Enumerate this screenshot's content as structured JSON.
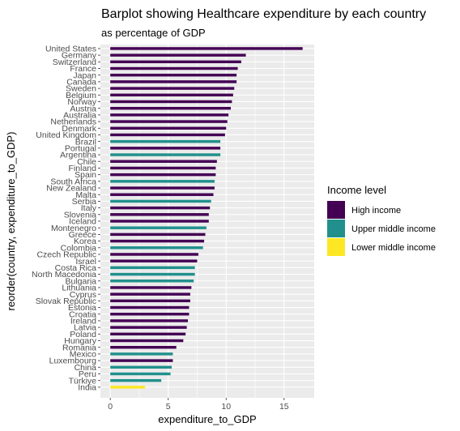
{
  "chart_data": {
    "type": "bar",
    "orientation": "horizontal",
    "title": "Barplot showing Healthcare expenditure by each country",
    "subtitle": "as percentage of GDP",
    "xlabel": "expenditure_to_GDP",
    "ylabel": "reorder(country, expenditure_to_GDP)",
    "xlim": [
      -0.85,
      17.6
    ],
    "x_ticks": [
      0,
      5,
      10,
      15
    ],
    "grid": true,
    "panel_background": "#ebebeb",
    "legend": {
      "title": "Income level",
      "position": "right",
      "entries": [
        {
          "name": "High income",
          "color": "#440154"
        },
        {
          "name": "Upper middle income",
          "color": "#21908c"
        },
        {
          "name": "Lower middle income",
          "color": "#fde725"
        }
      ]
    },
    "colors": {
      "High income": "#440154",
      "Upper middle income": "#21908c",
      "Lower middle income": "#fde725"
    },
    "categories": [
      "United States",
      "Germany",
      "Switzerland",
      "France",
      "Japan",
      "Canada",
      "Sweden",
      "Belgium",
      "Norway",
      "Austria",
      "Australia",
      "Netherlands",
      "Denmark",
      "United Kingdom",
      "Brazil",
      "Portugal",
      "Argentina",
      "Chile",
      "Finland",
      "Spain",
      "South Africa",
      "New Zealand",
      "Malta",
      "Serbia",
      "Italy",
      "Slovenia",
      "Iceland",
      "Montenegro",
      "Greece",
      "Korea",
      "Colombia",
      "Czech Republic",
      "Israel",
      "Costa Rica",
      "North Macedonia",
      "Bulgaria",
      "Lithuania",
      "Cyprus",
      "Slovak Republic",
      "Estonia",
      "Croatia",
      "Ireland",
      "Latvia",
      "Poland",
      "Hungary",
      "Romania",
      "Mexico",
      "Luxembourg",
      "China",
      "Peru",
      "Türkiye",
      "India"
    ],
    "values": [
      16.6,
      11.7,
      11.3,
      11.0,
      10.9,
      10.9,
      10.7,
      10.6,
      10.5,
      10.4,
      10.2,
      10.1,
      10.0,
      9.9,
      9.5,
      9.5,
      9.5,
      9.2,
      9.1,
      9.1,
      9.0,
      9.0,
      8.9,
      8.7,
      8.6,
      8.5,
      8.5,
      8.3,
      8.2,
      8.1,
      8.0,
      7.6,
      7.5,
      7.3,
      7.3,
      7.2,
      7.0,
      6.9,
      6.9,
      6.8,
      6.8,
      6.7,
      6.6,
      6.5,
      6.3,
      5.7,
      5.4,
      5.4,
      5.3,
      5.2,
      4.4,
      3.0
    ],
    "income_level": [
      "High income",
      "High income",
      "High income",
      "High income",
      "High income",
      "High income",
      "High income",
      "High income",
      "High income",
      "High income",
      "High income",
      "High income",
      "High income",
      "High income",
      "Upper middle income",
      "High income",
      "Upper middle income",
      "High income",
      "High income",
      "High income",
      "Upper middle income",
      "High income",
      "High income",
      "Upper middle income",
      "High income",
      "High income",
      "High income",
      "Upper middle income",
      "High income",
      "High income",
      "Upper middle income",
      "High income",
      "High income",
      "Upper middle income",
      "Upper middle income",
      "Upper middle income",
      "High income",
      "High income",
      "High income",
      "High income",
      "High income",
      "High income",
      "High income",
      "High income",
      "High income",
      "High income",
      "Upper middle income",
      "High income",
      "Upper middle income",
      "Upper middle income",
      "Upper middle income",
      "Lower middle income"
    ]
  }
}
